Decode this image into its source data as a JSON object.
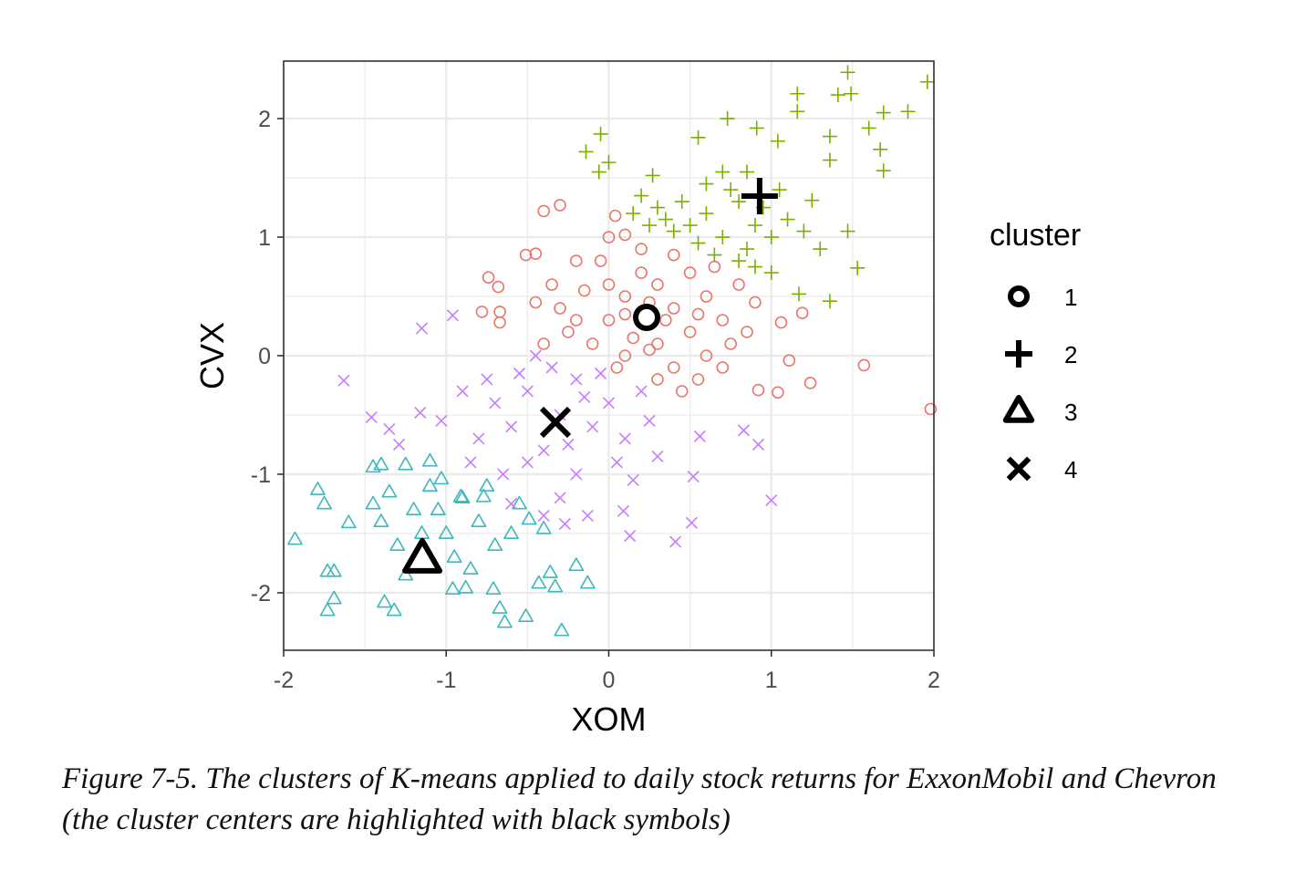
{
  "chart_data": {
    "type": "scatter",
    "xlabel": "XOM",
    "ylabel": "CVX",
    "xlim": [
      -2,
      2
    ],
    "ylim": [
      -2.485,
      2.485
    ],
    "xticks": [
      "-2",
      "-1",
      "0",
      "1",
      "2"
    ],
    "xtick_values": [
      -2,
      -1,
      0,
      1,
      2
    ],
    "yticks": [
      "-2",
      "-1",
      "0",
      "1",
      "2"
    ],
    "ytick_values": [
      -2,
      -1,
      0,
      1,
      2
    ],
    "grid": true,
    "legend": {
      "title": "cluster",
      "placement": "right",
      "entries": [
        "1",
        "2",
        "3",
        "4"
      ]
    },
    "series": [
      {
        "name": "1",
        "shape": "circle",
        "color": "#E8776C",
        "points": [
          [
            1.98,
            -0.45
          ],
          [
            1.57,
            -0.08
          ],
          [
            1.24,
            -0.23
          ],
          [
            1.11,
            -0.04
          ],
          [
            1.04,
            -0.31
          ],
          [
            0.92,
            -0.29
          ],
          [
            1.19,
            0.36
          ],
          [
            1.06,
            0.28
          ],
          [
            -0.3,
            1.27
          ],
          [
            -0.4,
            1.22
          ],
          [
            -0.74,
            0.66
          ],
          [
            -0.68,
            0.58
          ],
          [
            -0.78,
            0.37
          ],
          [
            -0.67,
            0.37
          ],
          [
            -0.67,
            0.28
          ],
          [
            -0.51,
            0.85
          ],
          [
            -0.45,
            0.86
          ],
          [
            0.04,
            1.18
          ],
          [
            0.1,
            1.02
          ],
          [
            0.0,
            0.3
          ],
          [
            0.1,
            0.5
          ],
          [
            0.3,
            0.1
          ],
          [
            0.4,
            0.4
          ],
          [
            0.5,
            0.2
          ],
          [
            0.2,
            0.7
          ],
          [
            -0.1,
            0.1
          ],
          [
            -0.2,
            0.3
          ],
          [
            0.6,
            0.5
          ],
          [
            0.7,
            0.3
          ],
          [
            0.3,
            0.6
          ],
          [
            0.1,
            0.0
          ],
          [
            0.4,
            -0.1
          ],
          [
            0.5,
            0.7
          ],
          [
            0.2,
            0.9
          ],
          [
            -0.3,
            0.4
          ],
          [
            0.0,
            0.6
          ],
          [
            0.8,
            0.6
          ],
          [
            0.6,
            0.0
          ],
          [
            0.3,
            -0.2
          ],
          [
            0.45,
            -0.3
          ],
          [
            0.15,
            0.15
          ],
          [
            0.35,
            0.3
          ],
          [
            -0.15,
            0.55
          ],
          [
            -0.05,
            0.8
          ],
          [
            0.25,
            0.45
          ],
          [
            0.55,
            0.35
          ],
          [
            0.65,
            0.75
          ],
          [
            0.75,
            0.1
          ],
          [
            0.1,
            0.35
          ],
          [
            -0.25,
            0.2
          ],
          [
            0.0,
            1.0
          ],
          [
            -0.2,
            0.8
          ],
          [
            0.4,
            0.85
          ],
          [
            0.85,
            0.2
          ],
          [
            0.7,
            -0.1
          ],
          [
            0.55,
            -0.2
          ],
          [
            0.05,
            -0.1
          ],
          [
            -0.35,
            0.6
          ],
          [
            0.25,
            0.05
          ],
          [
            -0.4,
            0.1
          ],
          [
            -0.45,
            0.45
          ],
          [
            0.9,
            0.45
          ]
        ]
      },
      {
        "name": "2",
        "shape": "plus",
        "color": "#7CAE00",
        "points": [
          [
            1.96,
            2.31
          ],
          [
            1.47,
            2.39
          ],
          [
            1.49,
            2.21
          ],
          [
            1.41,
            2.2
          ],
          [
            1.16,
            2.21
          ],
          [
            1.16,
            2.06
          ],
          [
            1.84,
            2.06
          ],
          [
            1.69,
            2.05
          ],
          [
            1.6,
            1.92
          ],
          [
            1.67,
            1.74
          ],
          [
            1.69,
            1.56
          ],
          [
            1.36,
            1.85
          ],
          [
            1.36,
            1.65
          ],
          [
            -0.05,
            1.87
          ],
          [
            -0.14,
            1.72
          ],
          [
            0.0,
            1.63
          ],
          [
            -0.06,
            1.55
          ],
          [
            0.55,
            1.84
          ],
          [
            0.73,
            2.0
          ],
          [
            0.91,
            1.92
          ],
          [
            1.04,
            1.81
          ],
          [
            1.53,
            0.74
          ],
          [
            1.36,
            0.46
          ],
          [
            1.17,
            0.52
          ],
          [
            0.27,
            1.52
          ],
          [
            1.47,
            1.05
          ],
          [
            1.25,
            1.31
          ],
          [
            0.5,
            1.1
          ],
          [
            0.6,
            1.2
          ],
          [
            0.7,
            1.0
          ],
          [
            0.8,
            1.3
          ],
          [
            0.9,
            1.1
          ],
          [
            0.55,
            0.95
          ],
          [
            0.65,
            0.85
          ],
          [
            0.75,
            1.4
          ],
          [
            0.85,
            0.9
          ],
          [
            0.95,
            1.25
          ],
          [
            0.4,
            1.05
          ],
          [
            0.45,
            1.3
          ],
          [
            0.35,
            1.15
          ],
          [
            0.6,
            1.45
          ],
          [
            0.7,
            1.55
          ],
          [
            1.0,
            1.0
          ],
          [
            1.05,
            1.4
          ],
          [
            0.8,
            0.8
          ],
          [
            0.9,
            0.75
          ],
          [
            1.1,
            1.15
          ],
          [
            0.3,
            1.25
          ],
          [
            0.2,
            1.35
          ],
          [
            0.15,
            1.2
          ],
          [
            0.25,
            1.1
          ],
          [
            1.2,
            1.05
          ],
          [
            0.85,
            1.55
          ],
          [
            1.3,
            0.9
          ],
          [
            1.0,
            0.7
          ]
        ]
      },
      {
        "name": "3",
        "shape": "triangle",
        "color": "#3DB8BC",
        "points": [
          [
            -1.93,
            -1.55
          ],
          [
            -1.79,
            -1.13
          ],
          [
            -1.75,
            -1.25
          ],
          [
            -1.6,
            -1.41
          ],
          [
            -1.73,
            -1.82
          ],
          [
            -1.69,
            -1.82
          ],
          [
            -1.69,
            -2.05
          ],
          [
            -1.73,
            -2.15
          ],
          [
            -1.38,
            -2.08
          ],
          [
            -1.32,
            -2.15
          ],
          [
            -0.29,
            -2.32
          ],
          [
            -0.64,
            -2.25
          ],
          [
            -0.51,
            -2.2
          ],
          [
            -0.36,
            -1.83
          ],
          [
            -0.2,
            -1.77
          ],
          [
            -0.13,
            -1.92
          ],
          [
            -0.33,
            -1.95
          ],
          [
            -0.43,
            -1.92
          ],
          [
            -0.96,
            -1.97
          ],
          [
            -0.88,
            -1.96
          ],
          [
            -0.71,
            -1.97
          ],
          [
            -0.67,
            -2.13
          ],
          [
            -1.45,
            -0.94
          ],
          [
            -1.4,
            -0.92
          ],
          [
            -1.25,
            -0.92
          ],
          [
            -1.1,
            -0.89
          ],
          [
            -1.03,
            -1.04
          ],
          [
            -0.91,
            -1.19
          ],
          [
            -0.77,
            -1.19
          ],
          [
            -0.4,
            -1.46
          ],
          [
            -0.49,
            -1.38
          ],
          [
            -1.2,
            -1.3
          ],
          [
            -1.0,
            -1.5
          ],
          [
            -1.3,
            -1.6
          ],
          [
            -0.9,
            -1.2
          ],
          [
            -0.8,
            -1.4
          ],
          [
            -1.1,
            -1.1
          ],
          [
            -1.4,
            -1.4
          ],
          [
            -0.7,
            -1.6
          ],
          [
            -1.25,
            -1.85
          ],
          [
            -0.95,
            -1.7
          ],
          [
            -0.6,
            -1.5
          ],
          [
            -0.85,
            -1.8
          ],
          [
            -1.45,
            -1.25
          ],
          [
            -0.55,
            -1.25
          ],
          [
            -1.05,
            -1.3
          ],
          [
            -1.35,
            -1.15
          ],
          [
            -0.75,
            -1.1
          ],
          [
            -1.15,
            -1.5
          ]
        ]
      },
      {
        "name": "4",
        "shape": "x",
        "color": "#C77CFF",
        "points": [
          [
            -1.63,
            -0.21
          ],
          [
            -1.15,
            0.23
          ],
          [
            -0.96,
            0.34
          ],
          [
            1.0,
            -1.22
          ],
          [
            0.41,
            -1.57
          ],
          [
            0.51,
            -1.41
          ],
          [
            0.92,
            -0.75
          ],
          [
            0.83,
            -0.63
          ],
          [
            0.56,
            -0.68
          ],
          [
            0.52,
            -1.02
          ],
          [
            0.13,
            -1.52
          ],
          [
            -1.46,
            -0.52
          ],
          [
            -1.35,
            -0.62
          ],
          [
            -1.29,
            -0.75
          ],
          [
            -1.16,
            -0.48
          ],
          [
            -1.03,
            -0.55
          ],
          [
            -0.27,
            -1.42
          ],
          [
            -0.13,
            -1.35
          ],
          [
            0.09,
            -1.31
          ],
          [
            -0.3,
            -0.5
          ],
          [
            -0.5,
            -0.3
          ],
          [
            -0.1,
            -0.6
          ],
          [
            -0.4,
            -0.8
          ],
          [
            -0.2,
            -0.2
          ],
          [
            0.0,
            -0.4
          ],
          [
            -0.6,
            -0.6
          ],
          [
            -0.5,
            -0.9
          ],
          [
            -0.2,
            -1.0
          ],
          [
            0.1,
            -0.7
          ],
          [
            0.2,
            -0.3
          ],
          [
            -0.35,
            -0.1
          ],
          [
            -0.45,
            0.0
          ],
          [
            -0.7,
            -0.4
          ],
          [
            -0.8,
            -0.7
          ],
          [
            -0.65,
            -1.0
          ],
          [
            -0.3,
            -1.2
          ],
          [
            0.05,
            -0.9
          ],
          [
            0.25,
            -0.55
          ],
          [
            -0.15,
            -0.35
          ],
          [
            -0.55,
            -0.15
          ],
          [
            -0.75,
            -0.2
          ],
          [
            -0.9,
            -0.3
          ],
          [
            -0.4,
            -1.35
          ],
          [
            0.15,
            -1.05
          ],
          [
            0.3,
            -0.85
          ],
          [
            -0.05,
            -0.15
          ],
          [
            -0.25,
            -0.75
          ],
          [
            -0.6,
            -1.25
          ],
          [
            -0.85,
            -0.9
          ]
        ]
      }
    ],
    "centers": [
      {
        "name": "1",
        "shape": "circle",
        "x": 0.233,
        "y": 0.323
      },
      {
        "name": "2",
        "shape": "plus",
        "x": 0.928,
        "y": 1.346
      },
      {
        "name": "3",
        "shape": "triangle",
        "x": -1.147,
        "y": -1.715
      },
      {
        "name": "4",
        "shape": "x",
        "x": -0.328,
        "y": -0.562
      }
    ]
  },
  "caption": "Figure 7-5. The clusters of K-means applied to daily stock returns for ExxonMobil and Chevron (the cluster centers are highlighted with black symbols)"
}
